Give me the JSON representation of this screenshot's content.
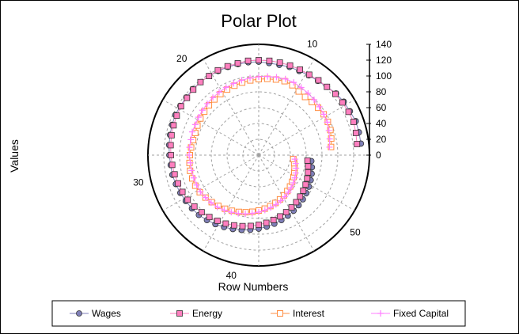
{
  "chart_data": {
    "type": "polar-scatter",
    "title": "Polar Plot",
    "xlabel": "Row Numbers",
    "ylabel": "Values",
    "angle_axis": {
      "min": 0,
      "max": 56,
      "ticks": [
        10,
        20,
        30,
        40,
        50
      ]
    },
    "radial_axis": {
      "min": 0,
      "max": 140,
      "ticks": [
        0,
        20,
        40,
        60,
        80,
        100,
        120,
        140
      ]
    },
    "grid": true,
    "legend_position": "bottom",
    "series": [
      {
        "name": "Wages",
        "marker": "circle",
        "color": "#7f7fb8",
        "x": [
          1,
          2,
          3,
          4,
          5,
          6,
          7,
          8,
          9,
          10,
          11,
          12,
          13,
          14,
          15,
          16,
          17,
          18,
          19,
          20,
          21,
          22,
          23,
          24,
          25,
          26,
          27,
          28,
          29,
          30,
          31,
          32,
          33,
          34,
          35,
          36,
          37,
          38,
          39,
          40,
          41,
          42,
          43,
          44,
          45,
          46,
          47,
          48,
          49,
          50,
          51,
          52,
          53,
          54,
          55
        ],
        "values": [
          130,
          130,
          130,
          128,
          127,
          125,
          122,
          120,
          119,
          118,
          118,
          117,
          117,
          118,
          118,
          118,
          118,
          118,
          118,
          118,
          118,
          117,
          117,
          117,
          116,
          115,
          114,
          113,
          112,
          112,
          111,
          110,
          109,
          108,
          107,
          105,
          103,
          101,
          99,
          97,
          95,
          93,
          91,
          89,
          87,
          85,
          83,
          81,
          79,
          77,
          75,
          73,
          71,
          69,
          67
        ]
      },
      {
        "name": "Energy",
        "marker": "square",
        "color": "#ff7fbf",
        "x": [
          1,
          2,
          3,
          4,
          5,
          6,
          7,
          8,
          9,
          10,
          11,
          12,
          13,
          14,
          15,
          16,
          17,
          18,
          19,
          20,
          21,
          22,
          23,
          24,
          25,
          26,
          27,
          28,
          29,
          30,
          31,
          32,
          33,
          34,
          35,
          36,
          37,
          38,
          39,
          40,
          41,
          42,
          43,
          44,
          45,
          46,
          47,
          48,
          49,
          50,
          51,
          52,
          53,
          54,
          55
        ],
        "values": [
          125,
          126,
          127,
          126,
          125,
          124,
          122,
          121,
          120,
          120,
          120,
          120,
          120,
          120,
          120,
          119,
          119,
          119,
          118,
          118,
          117,
          116,
          116,
          115,
          114,
          113,
          112,
          111,
          110,
          109,
          108,
          107,
          106,
          104,
          102,
          100,
          98,
          96,
          94,
          92,
          90,
          88,
          86,
          84,
          82,
          80,
          78,
          76,
          74,
          72,
          70,
          68,
          66,
          64,
          62
        ]
      },
      {
        "name": "Interest",
        "marker": "open-square",
        "color": "#ff8c40",
        "x": [
          1,
          2,
          3,
          4,
          5,
          6,
          7,
          8,
          9,
          10,
          11,
          12,
          13,
          14,
          15,
          16,
          17,
          18,
          19,
          20,
          21,
          22,
          23,
          24,
          25,
          26,
          27,
          28,
          29,
          30,
          31,
          32,
          33,
          34,
          35,
          36,
          37,
          38,
          39,
          40,
          41,
          42,
          43,
          44,
          45,
          46,
          47,
          48,
          49,
          50,
          51,
          52,
          53,
          54,
          55
        ],
        "values": [
          92,
          94,
          96,
          97,
          97,
          96,
          95,
          94,
          95,
          98,
          99,
          98,
          97,
          96,
          95,
          94,
          93,
          92,
          91,
          90,
          89,
          88,
          87,
          86,
          85,
          85,
          86,
          87,
          88,
          89,
          89,
          89,
          88,
          86,
          84,
          82,
          80,
          78,
          76,
          74,
          72,
          70,
          68,
          66,
          64,
          62,
          60,
          58,
          56,
          54,
          52,
          50,
          48,
          46,
          44
        ]
      },
      {
        "name": "Fixed Capital",
        "marker": "plus",
        "color": "#ff7fff",
        "x": [
          1,
          2,
          3,
          4,
          5,
          6,
          7,
          8,
          9,
          10,
          11,
          12,
          13,
          14,
          15,
          16,
          17,
          18,
          19,
          20,
          21,
          22,
          23,
          24,
          25,
          26,
          27,
          28,
          29,
          30,
          31,
          32,
          33,
          34,
          35,
          36,
          37,
          38,
          39,
          40,
          41,
          42,
          43,
          44,
          45,
          46,
          47,
          48,
          49,
          50,
          51,
          52,
          53,
          54,
          55
        ],
        "values": [
          90,
          92,
          94,
          96,
          97,
          98,
          99,
          100,
          101,
          102,
          102,
          101,
          100,
          99,
          98,
          97,
          96,
          95,
          94,
          93,
          92,
          91,
          90,
          89,
          89,
          88,
          88,
          88,
          87,
          87,
          87,
          87,
          87,
          86,
          85,
          84,
          82,
          80,
          78,
          76,
          74,
          72,
          70,
          68,
          66,
          64,
          62,
          60,
          58,
          56,
          54,
          52,
          50,
          48,
          46
        ]
      }
    ]
  }
}
